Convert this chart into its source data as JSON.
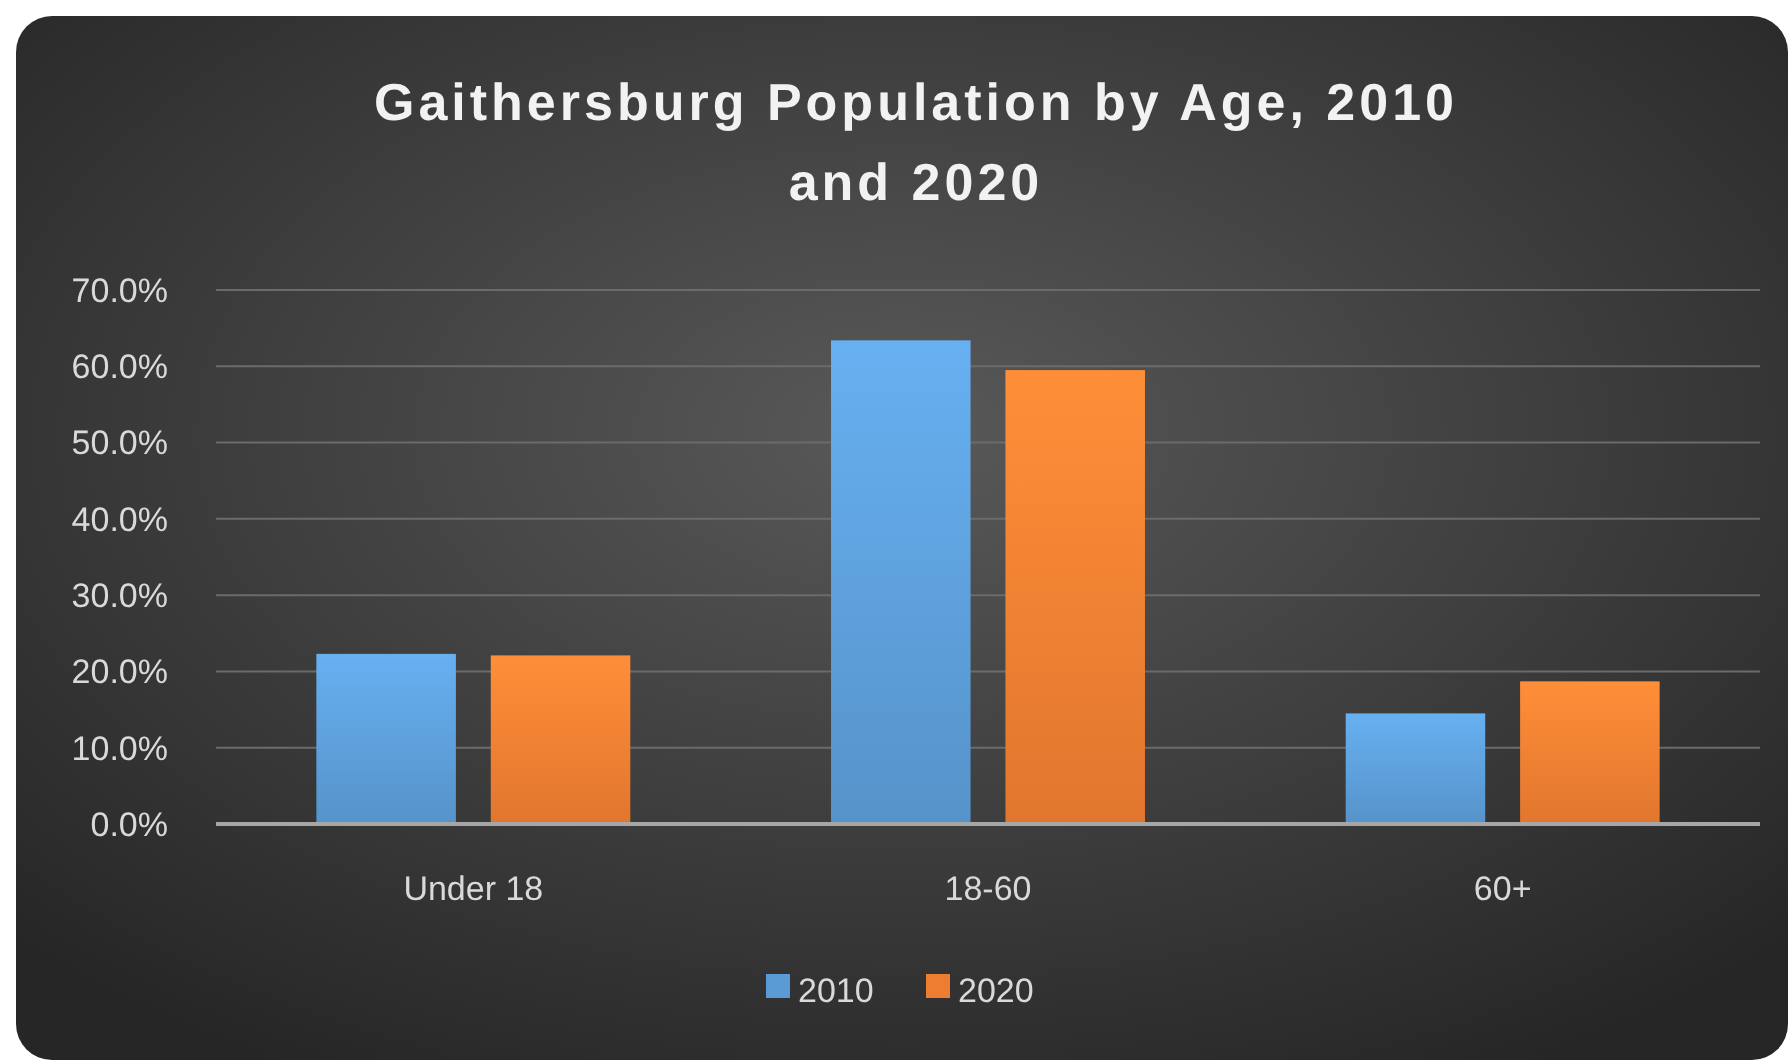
{
  "chart_data": {
    "type": "bar",
    "title": "Gaithersburg Population by Age, 2010 and 2020",
    "categories": [
      "Under 18",
      "18-60",
      "60+"
    ],
    "series": [
      {
        "name": "2010",
        "color": "#5b9bd5",
        "values": [
          22.3,
          63.4,
          14.5
        ]
      },
      {
        "name": "2020",
        "color": "#ed7d31",
        "values": [
          22.1,
          59.5,
          18.7
        ]
      }
    ],
    "ylim": [
      0,
      70
    ],
    "yticks": [
      {
        "value": 0,
        "label": "0.0%"
      },
      {
        "value": 10,
        "label": "10.0%"
      },
      {
        "value": 20,
        "label": "20.0%"
      },
      {
        "value": 30,
        "label": "30.0%"
      },
      {
        "value": 40,
        "label": "40.0%"
      },
      {
        "value": 50,
        "label": "50.0%"
      },
      {
        "value": 60,
        "label": "60.0%"
      },
      {
        "value": 70,
        "label": "70.0%"
      }
    ],
    "grid": "y",
    "legend": "bottom"
  }
}
